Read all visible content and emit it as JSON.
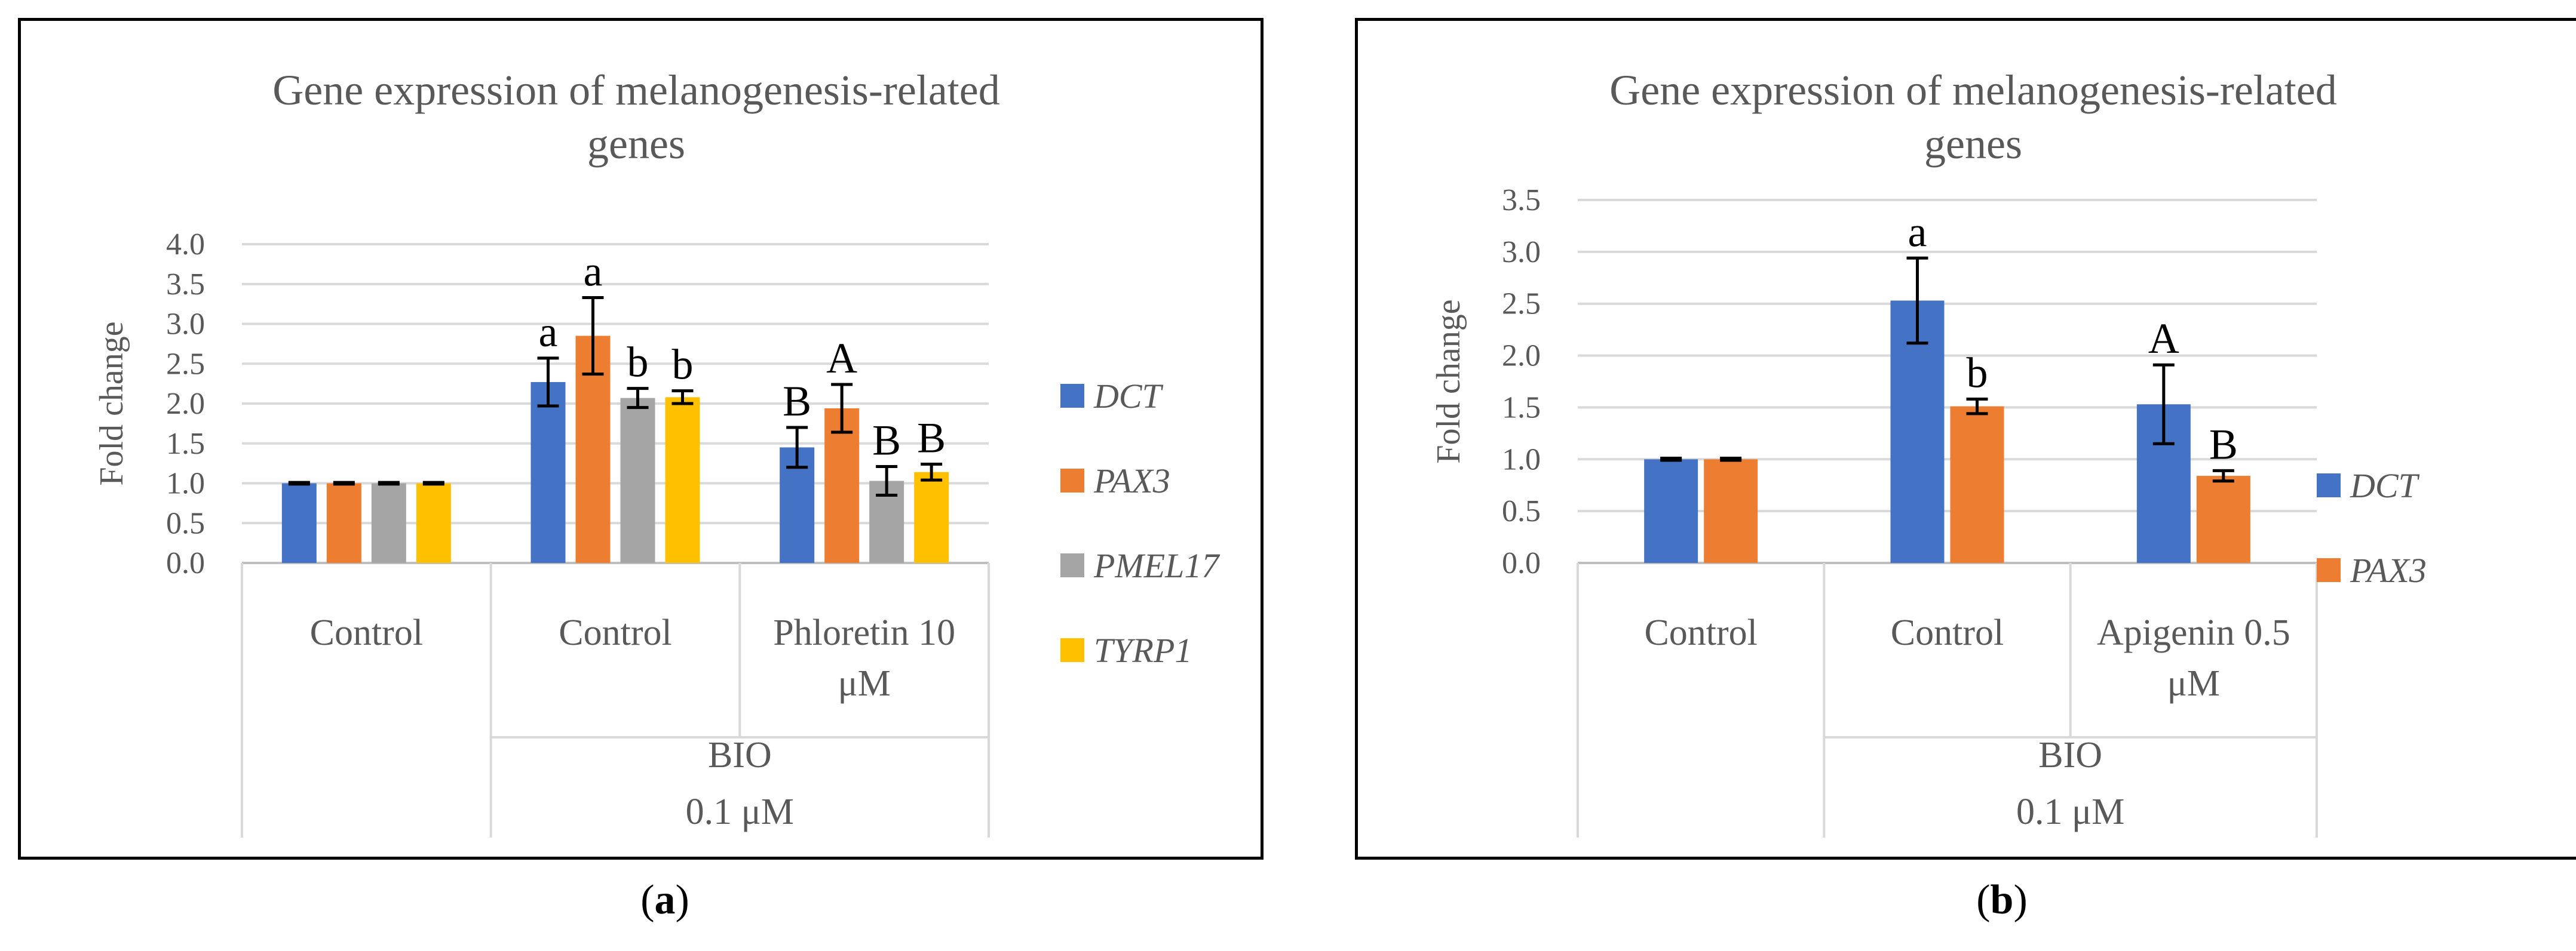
{
  "colors": {
    "DCT": "#4472c4",
    "PAX3": "#ed7d31",
    "PMEL17": "#a5a5a5",
    "TYRP1": "#ffc000",
    "text": "#595959",
    "grid": "#d9d9d9",
    "axis": "#bfbfbf"
  },
  "captions": {
    "a": {
      "open": "(",
      "letter": "a",
      "close": ")"
    },
    "b": {
      "open": "(",
      "letter": "b",
      "close": ")"
    }
  },
  "chart_data": [
    {
      "type": "bar",
      "title_lines": [
        "Gene expression of melanogenesis-related",
        "genes"
      ],
      "ylabel": "Fold change",
      "ylim": [
        0,
        4.0
      ],
      "yticks": [
        "0.0",
        "0.5",
        "1.0",
        "1.5",
        "2.0",
        "2.5",
        "3.0",
        "3.5",
        "4.0"
      ],
      "categories": [
        "Control",
        "Control",
        "Phloretin 10 μM"
      ],
      "category_lines": [
        [
          "Control"
        ],
        [
          "Control"
        ],
        [
          "Phloretin 10",
          "μM"
        ]
      ],
      "group_label_lines": [
        "BIO",
        "0.1 μM"
      ],
      "series": [
        {
          "name": "DCT",
          "values": [
            1.0,
            2.27,
            1.45
          ],
          "errors": [
            0.01,
            0.3,
            0.25
          ],
          "letters": [
            "",
            "a",
            "B"
          ]
        },
        {
          "name": "PAX3",
          "values": [
            1.0,
            2.85,
            1.94
          ],
          "errors": [
            0.01,
            0.48,
            0.3
          ],
          "letters": [
            "",
            "a",
            "A"
          ]
        },
        {
          "name": "PMEL17",
          "values": [
            1.0,
            2.07,
            1.03
          ],
          "errors": [
            0.01,
            0.12,
            0.18
          ],
          "letters": [
            "",
            "b",
            "B"
          ]
        },
        {
          "name": "TYRP1",
          "values": [
            1.0,
            2.08,
            1.14
          ],
          "errors": [
            0.01,
            0.08,
            0.1
          ],
          "letters": [
            "",
            "b",
            "B"
          ]
        }
      ]
    },
    {
      "type": "bar",
      "title_lines": [
        "Gene expression of melanogenesis-related",
        "genes"
      ],
      "ylabel": "Fold change",
      "ylim": [
        0,
        3.5
      ],
      "yticks": [
        "0.0",
        "0.5",
        "1.0",
        "1.5",
        "2.0",
        "2.5",
        "3.0",
        "3.5"
      ],
      "categories": [
        "Control",
        "Control",
        "Apigenin 0.5 μM"
      ],
      "category_lines": [
        [
          "Control"
        ],
        [
          "Control"
        ],
        [
          "Apigenin 0.5",
          "μM"
        ]
      ],
      "group_label_lines": [
        "BIO",
        "0.1 μM"
      ],
      "series": [
        {
          "name": "DCT",
          "values": [
            1.0,
            2.53,
            1.53
          ],
          "errors": [
            0.01,
            0.41,
            0.38
          ],
          "letters": [
            "",
            "a",
            "A"
          ]
        },
        {
          "name": "PAX3",
          "values": [
            1.0,
            1.51,
            0.84
          ],
          "errors": [
            0.01,
            0.07,
            0.05
          ],
          "letters": [
            "",
            "b",
            "B"
          ]
        }
      ]
    }
  ]
}
